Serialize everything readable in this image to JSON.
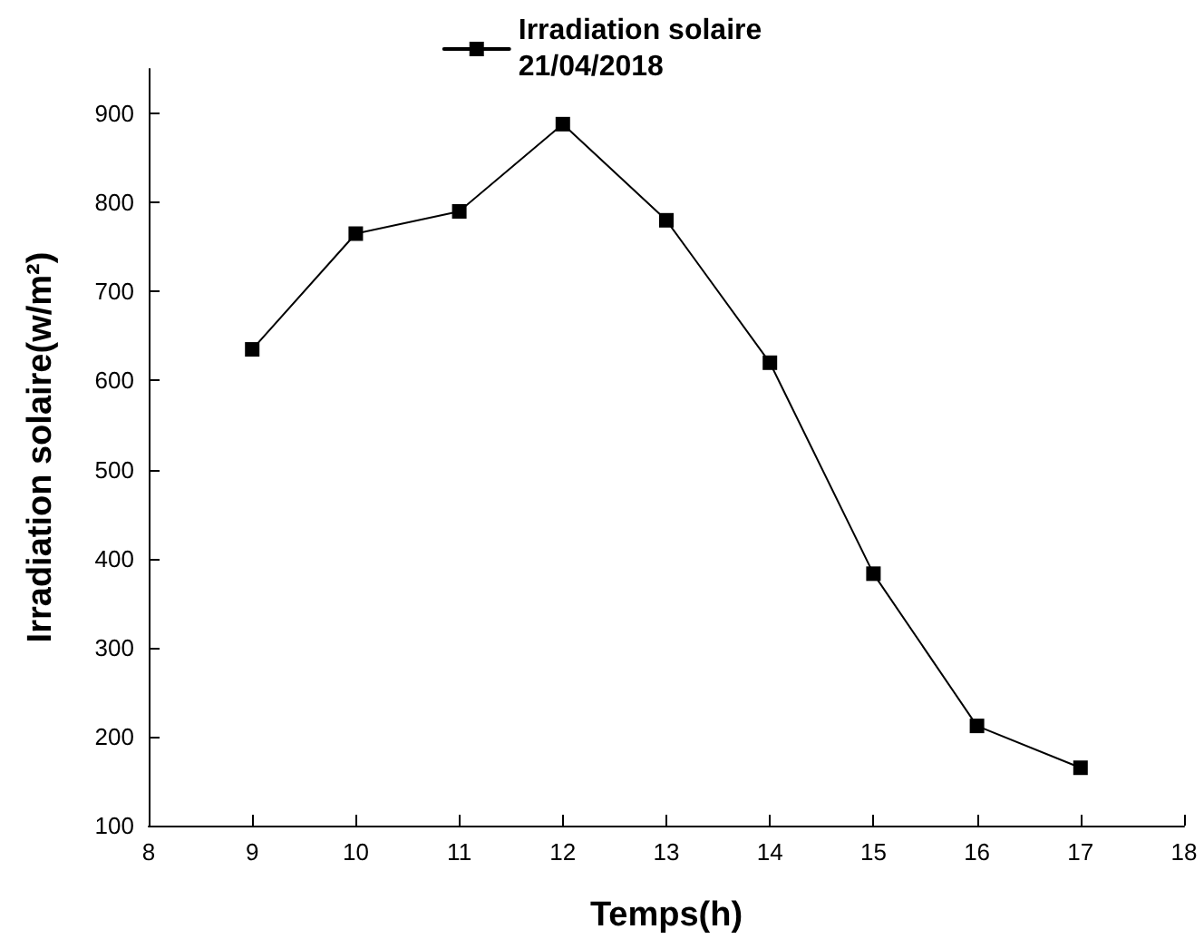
{
  "chart_data": {
    "type": "line",
    "xlabel": "Temps(h)",
    "ylabel": "Irradiation solaire(w/m²)",
    "x": [
      9,
      10,
      11,
      12,
      13,
      14,
      15,
      16,
      17
    ],
    "series": [
      {
        "name": "Irradiation solaire\n21/04/2018",
        "color": "#000000",
        "values": [
          635,
          765,
          790,
          888,
          780,
          620,
          383,
          212,
          165
        ]
      }
    ],
    "xlim": [
      8,
      18
    ],
    "xticks": [
      8,
      9,
      10,
      11,
      12,
      13,
      14,
      15,
      16,
      17,
      18
    ],
    "ylim": [
      100,
      950
    ],
    "yticks": [
      100,
      200,
      300,
      400,
      500,
      600,
      700,
      800,
      900
    ],
    "grid": false,
    "legend": "top",
    "marker": "square",
    "line_style": "solid"
  }
}
